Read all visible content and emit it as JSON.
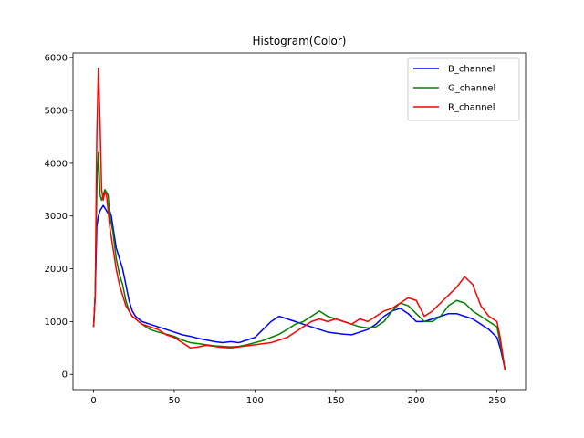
{
  "chart_data": {
    "type": "line",
    "title": "Histogram(Color)",
    "xlabel": "",
    "ylabel": "",
    "xlim": [
      -12.75,
      267.75
    ],
    "ylim": [
      -290,
      6090
    ],
    "xticks": [
      0,
      50,
      100,
      150,
      200,
      250
    ],
    "yticks": [
      0,
      1000,
      2000,
      3000,
      4000,
      5000,
      6000
    ],
    "grid": false,
    "legend_position": "top-right",
    "series": [
      {
        "name": "B_channel",
        "color": "#0000ff",
        "x": [
          0,
          1,
          2,
          3,
          4,
          5,
          6,
          7,
          8,
          9,
          10,
          11,
          12,
          14,
          16,
          18,
          20,
          22,
          24,
          26,
          28,
          30,
          35,
          40,
          45,
          50,
          55,
          60,
          65,
          70,
          75,
          80,
          85,
          90,
          95,
          100,
          105,
          110,
          115,
          120,
          125,
          130,
          135,
          140,
          145,
          150,
          155,
          160,
          165,
          170,
          175,
          180,
          185,
          190,
          195,
          200,
          205,
          210,
          215,
          220,
          225,
          230,
          235,
          240,
          245,
          250,
          252,
          255
        ],
        "y": [
          900,
          1500,
          2800,
          3000,
          3100,
          3150,
          3200,
          3150,
          3100,
          3050,
          3100,
          3000,
          2800,
          2400,
          2200,
          2000,
          1700,
          1400,
          1200,
          1100,
          1050,
          1000,
          950,
          900,
          850,
          800,
          750,
          720,
          680,
          650,
          620,
          600,
          620,
          600,
          650,
          700,
          850,
          1000,
          1100,
          1050,
          1000,
          950,
          900,
          850,
          800,
          780,
          760,
          750,
          800,
          850,
          950,
          1100,
          1200,
          1250,
          1150,
          1000,
          1000,
          1050,
          1100,
          1150,
          1150,
          1100,
          1050,
          950,
          850,
          700,
          500,
          100
        ]
      },
      {
        "name": "G_channel",
        "color": "#008000",
        "x": [
          0,
          1,
          2,
          3,
          4,
          5,
          6,
          7,
          8,
          9,
          10,
          12,
          14,
          16,
          18,
          20,
          22,
          24,
          26,
          28,
          30,
          35,
          40,
          45,
          50,
          55,
          60,
          65,
          70,
          75,
          80,
          85,
          90,
          95,
          100,
          105,
          110,
          115,
          120,
          125,
          130,
          135,
          140,
          145,
          150,
          155,
          160,
          165,
          170,
          175,
          180,
          185,
          190,
          195,
          200,
          205,
          210,
          215,
          220,
          225,
          230,
          235,
          240,
          245,
          250,
          252,
          255
        ],
        "y": [
          900,
          1500,
          3500,
          4200,
          3400,
          3300,
          3400,
          3500,
          3450,
          3400,
          3000,
          2700,
          2200,
          1900,
          1700,
          1400,
          1200,
          1100,
          1050,
          1000,
          950,
          850,
          800,
          760,
          720,
          650,
          600,
          580,
          560,
          540,
          530,
          520,
          530,
          560,
          600,
          640,
          700,
          760,
          850,
          950,
          1000,
          1100,
          1200,
          1100,
          1050,
          1000,
          950,
          900,
          880,
          900,
          1000,
          1200,
          1350,
          1300,
          1150,
          1000,
          1000,
          1100,
          1300,
          1400,
          1350,
          1200,
          1100,
          1000,
          900,
          600,
          80
        ]
      },
      {
        "name": "R_channel",
        "color": "#ff0000",
        "x": [
          0,
          1,
          2,
          3,
          4,
          5,
          6,
          7,
          8,
          9,
          10,
          12,
          14,
          16,
          18,
          20,
          22,
          24,
          26,
          28,
          30,
          35,
          40,
          45,
          50,
          55,
          60,
          65,
          70,
          75,
          80,
          85,
          90,
          95,
          100,
          105,
          110,
          115,
          120,
          125,
          130,
          135,
          140,
          145,
          150,
          155,
          160,
          165,
          170,
          175,
          180,
          185,
          190,
          195,
          200,
          205,
          210,
          215,
          220,
          225,
          230,
          235,
          240,
          245,
          250,
          252,
          255
        ],
        "y": [
          900,
          1500,
          4500,
          5800,
          4800,
          3500,
          3300,
          3450,
          3400,
          3100,
          2800,
          2400,
          2000,
          1700,
          1500,
          1300,
          1200,
          1100,
          1050,
          1000,
          950,
          900,
          850,
          750,
          700,
          600,
          500,
          520,
          550,
          530,
          510,
          500,
          520,
          540,
          560,
          580,
          600,
          650,
          700,
          800,
          900,
          1000,
          1050,
          1000,
          1050,
          1000,
          950,
          1050,
          1000,
          1100,
          1200,
          1250,
          1350,
          1450,
          1400,
          1100,
          1200,
          1350,
          1500,
          1650,
          1850,
          1700,
          1300,
          1100,
          1000,
          700,
          80
        ]
      }
    ]
  }
}
